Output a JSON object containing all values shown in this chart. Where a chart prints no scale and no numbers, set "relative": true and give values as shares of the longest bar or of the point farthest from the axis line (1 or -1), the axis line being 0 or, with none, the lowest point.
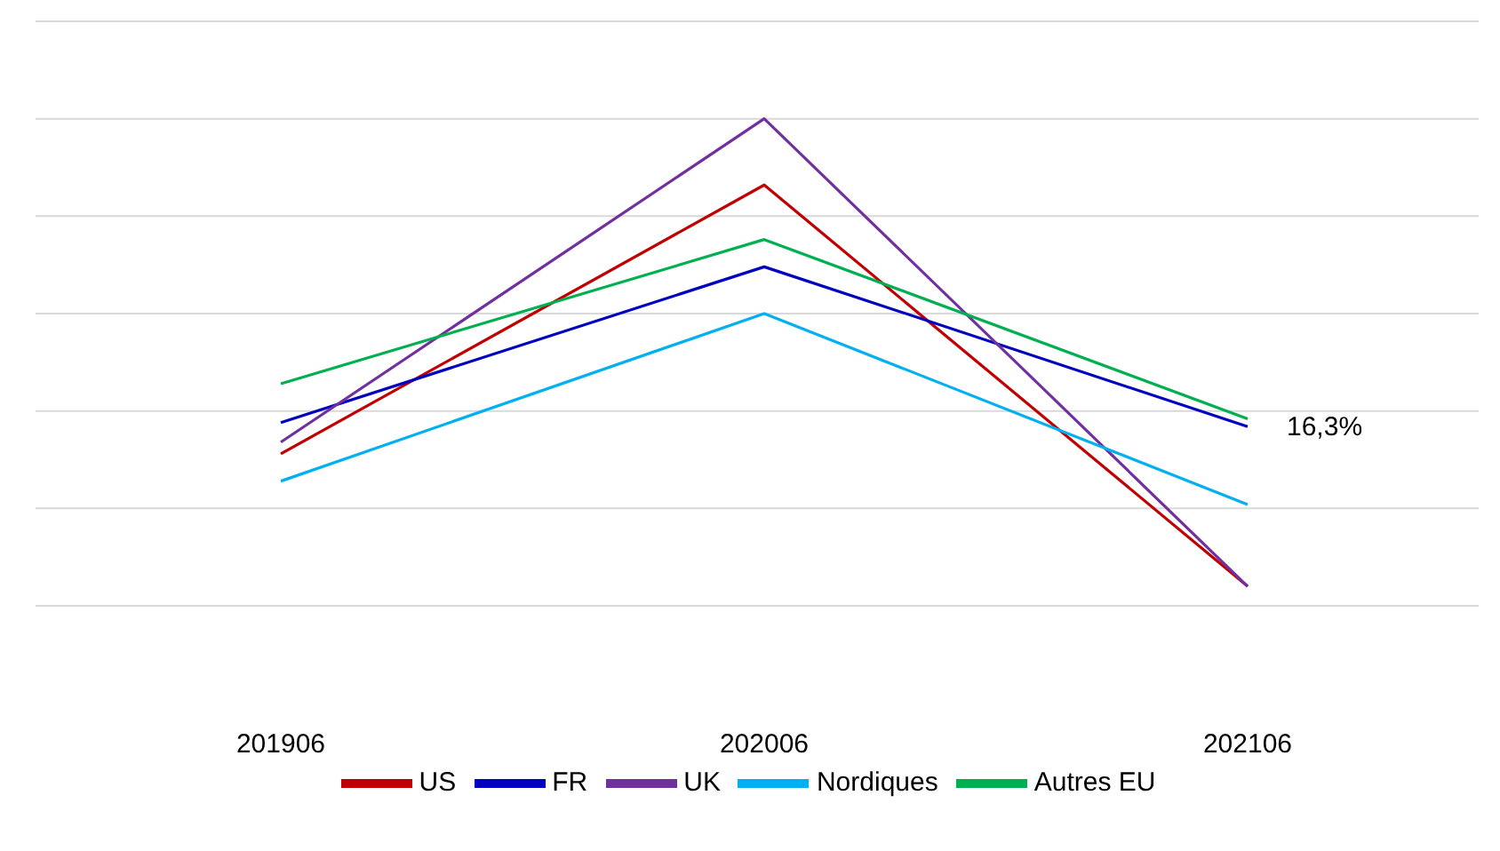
{
  "chart_data": {
    "type": "line",
    "relative": true,
    "categories": [
      "201906",
      "202006",
      "202106"
    ],
    "series": [
      {
        "name": "US",
        "color": "#c00000",
        "values": [
          0.14,
          0.83,
          -0.2
        ]
      },
      {
        "name": "FR",
        "color": "#0000c0",
        "values": [
          0.22,
          0.62,
          0.21
        ]
      },
      {
        "name": "UK",
        "color": "#7030a0",
        "values": [
          0.17,
          1,
          -0.2
        ]
      },
      {
        "name": "Nordiques",
        "color": "#00b0f0",
        "values": [
          0.07,
          0.5,
          0.01
        ]
      },
      {
        "name": "Autres EU",
        "color": "#00b050",
        "values": [
          0.32,
          0.69,
          0.23
        ]
      }
    ],
    "annotations": [
      {
        "text": "16,3%",
        "x": "202106",
        "y": 0.21
      }
    ],
    "grid": "y",
    "legend": "bottom",
    "marker": "none",
    "line_style": "solid"
  }
}
